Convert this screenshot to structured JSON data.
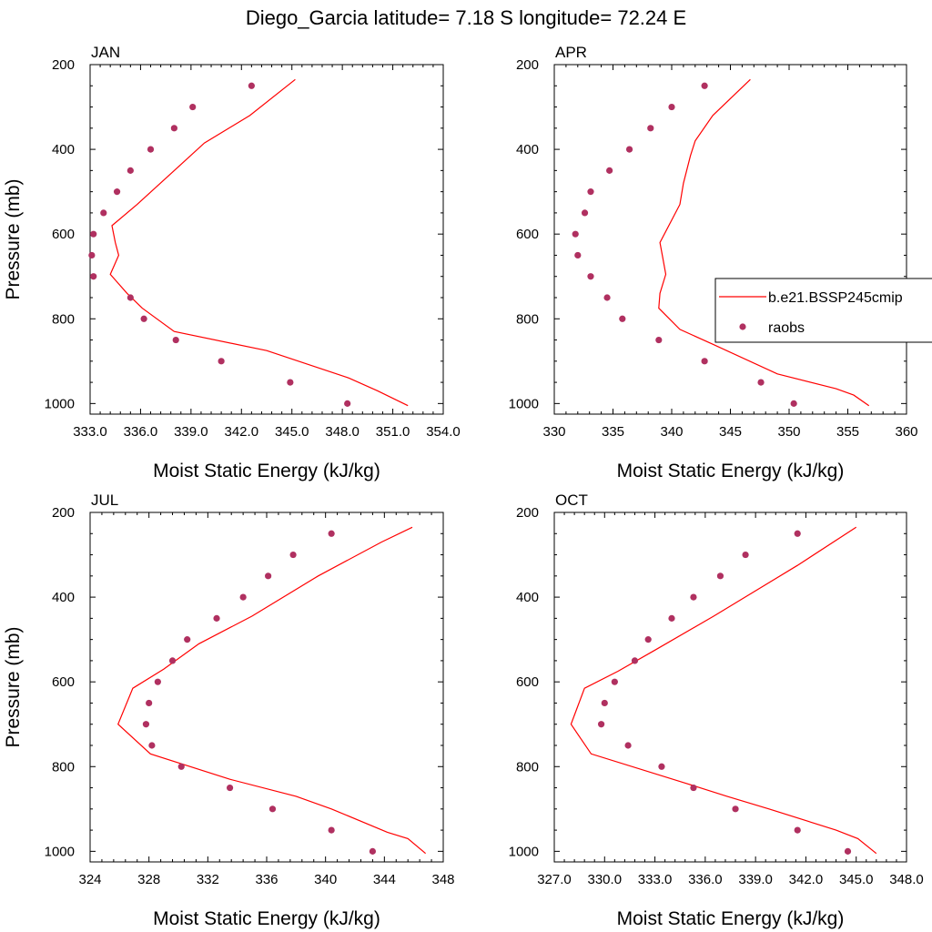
{
  "title": "Diego_Garcia  latitude= 7.18 S longitude= 72.24 E",
  "colors": {
    "model": "#ff0000",
    "obs": "#b03060"
  },
  "legend": {
    "model_label": "b.e21.BSSP245cmip",
    "obs_label": "raobs"
  },
  "chart_data": [
    {
      "type": "line",
      "title": "JAN",
      "xlabel": "Moist Static Energy (kJ/kg)",
      "ylabel": "Pressure (mb)",
      "xlim": [
        333,
        354
      ],
      "ylim": [
        200,
        1025
      ],
      "y_inverted": true,
      "xticks": [
        "333.0",
        "336.0",
        "339.0",
        "342.0",
        "345.0",
        "348.0",
        "351.0",
        "354.0"
      ],
      "yticks": [
        "200",
        "400",
        "600",
        "800",
        "1000"
      ],
      "series": [
        {
          "name": "b.e21.BSSP245cmip",
          "style": "line",
          "x": [
            351.9,
            350.1,
            348.4,
            343.5,
            338.0,
            336.1,
            335.2,
            334.2,
            334.7,
            334.5,
            334.3,
            335.8,
            338.0,
            339.8,
            342.5,
            345.2
          ],
          "y": [
            1005,
            970,
            940,
            875,
            830,
            775,
            740,
            695,
            650,
            620,
            580,
            530,
            450,
            385,
            320,
            235
          ]
        },
        {
          "name": "raobs",
          "style": "markers",
          "x": [
            348.3,
            344.9,
            340.8,
            338.1,
            336.2,
            335.4,
            333.2,
            333.1,
            333.2,
            333.8,
            334.6,
            335.4,
            336.6,
            338.0,
            339.1,
            342.6
          ],
          "y": [
            1000,
            950,
            900,
            850,
            800,
            750,
            700,
            650,
            600,
            550,
            500,
            450,
            400,
            350,
            300,
            250
          ]
        }
      ]
    },
    {
      "type": "line",
      "title": "APR",
      "xlabel": "Moist Static Energy (kJ/kg)",
      "ylabel": "",
      "xlim": [
        330,
        360
      ],
      "ylim": [
        200,
        1025
      ],
      "y_inverted": true,
      "xticks": [
        "330",
        "335",
        "340",
        "345",
        "350",
        "355",
        "360"
      ],
      "yticks": [
        "200",
        "400",
        "600",
        "800",
        "1000"
      ],
      "series": [
        {
          "name": "b.e21.BSSP245cmip",
          "style": "line",
          "x": [
            356.8,
            355.5,
            354.0,
            349.0,
            343.5,
            340.7,
            338.9,
            339.0,
            339.5,
            339.2,
            339.0,
            340.7,
            341.0,
            341.6,
            342.0,
            343.5,
            346.7
          ],
          "y": [
            1005,
            980,
            965,
            930,
            860,
            825,
            775,
            740,
            695,
            650,
            620,
            530,
            480,
            415,
            380,
            320,
            235
          ]
        },
        {
          "name": "raobs",
          "style": "markers",
          "x": [
            350.4,
            347.6,
            342.8,
            338.9,
            335.8,
            334.5,
            333.1,
            332.0,
            331.8,
            332.6,
            333.1,
            334.7,
            336.4,
            338.2,
            340.0,
            342.8
          ],
          "y": [
            1000,
            950,
            900,
            850,
            800,
            750,
            700,
            650,
            600,
            550,
            500,
            450,
            400,
            350,
            300,
            250
          ]
        }
      ]
    },
    {
      "type": "line",
      "title": "JUL",
      "xlabel": "Moist Static Energy (kJ/kg)",
      "ylabel": "Pressure (mb)",
      "xlim": [
        324,
        348
      ],
      "ylim": [
        200,
        1025
      ],
      "y_inverted": true,
      "xticks": [
        "324",
        "328",
        "332",
        "336",
        "340",
        "344",
        "348"
      ],
      "yticks": [
        "200",
        "400",
        "600",
        "800",
        "1000"
      ],
      "series": [
        {
          "name": "b.e21.BSSP245cmip",
          "style": "line",
          "x": [
            346.8,
            345.6,
            344.2,
            340.4,
            338.0,
            333.5,
            328.1,
            325.9,
            326.9,
            329.0,
            331.4,
            335.0,
            339.5,
            343.8,
            345.9
          ],
          "y": [
            1005,
            970,
            955,
            900,
            870,
            830,
            770,
            700,
            615,
            570,
            510,
            445,
            350,
            270,
            235
          ]
        },
        {
          "name": "raobs",
          "style": "markers",
          "x": [
            343.2,
            340.4,
            336.4,
            333.5,
            330.2,
            328.2,
            327.8,
            328.0,
            328.6,
            329.6,
            330.6,
            332.6,
            334.4,
            336.1,
            337.8,
            340.4
          ],
          "y": [
            1000,
            950,
            900,
            850,
            800,
            750,
            700,
            650,
            600,
            550,
            500,
            450,
            400,
            350,
            300,
            250
          ]
        }
      ]
    },
    {
      "type": "line",
      "title": "OCT",
      "xlabel": "Moist Static Energy (kJ/kg)",
      "ylabel": "",
      "xlim": [
        327,
        348
      ],
      "ylim": [
        200,
        1025
      ],
      "y_inverted": true,
      "xticks": [
        "327.0",
        "330.0",
        "333.0",
        "336.0",
        "339.0",
        "342.0",
        "345.0",
        "348.0"
      ],
      "yticks": [
        "200",
        "400",
        "600",
        "800",
        "1000"
      ],
      "series": [
        {
          "name": "b.e21.BSSP245cmip",
          "style": "line",
          "x": [
            346.2,
            345.1,
            343.8,
            339.8,
            337.3,
            334.9,
            329.2,
            328.0,
            328.8,
            330.8,
            333.0,
            336.5,
            341.5,
            345.0
          ],
          "y": [
            1005,
            970,
            950,
            900,
            870,
            840,
            770,
            700,
            615,
            575,
            525,
            445,
            325,
            235
          ]
        },
        {
          "name": "raobs",
          "style": "markers",
          "x": [
            344.5,
            341.5,
            337.8,
            335.3,
            333.4,
            331.4,
            329.8,
            330.0,
            330.6,
            331.8,
            332.6,
            334.0,
            335.3,
            336.9,
            338.4,
            341.5
          ],
          "y": [
            1000,
            950,
            900,
            850,
            800,
            750,
            700,
            650,
            600,
            550,
            500,
            450,
            400,
            350,
            300,
            250
          ]
        }
      ]
    }
  ]
}
